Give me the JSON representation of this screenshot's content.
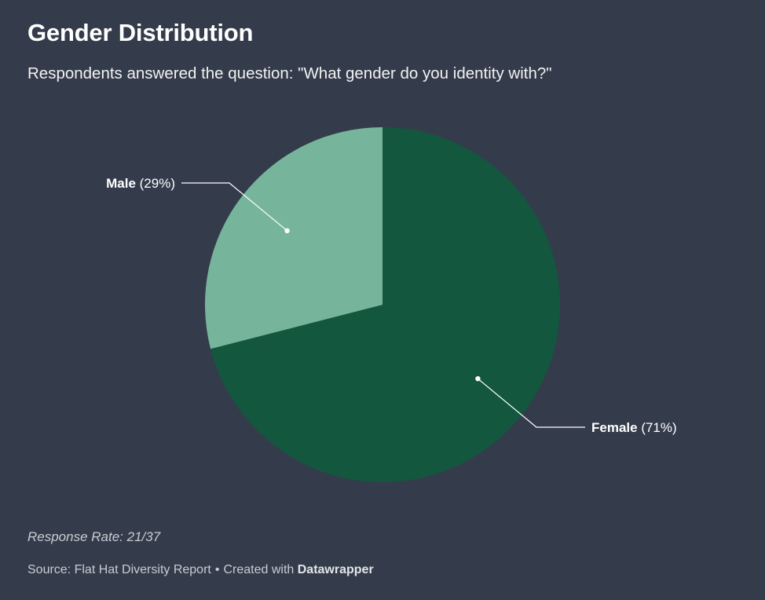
{
  "header": {
    "title": "Gender Distribution",
    "subtitle": "Respondents answered the question: \"What gender do you identity with?\""
  },
  "footer": {
    "note": "Response Rate: 21/37",
    "source": "Source: Flat Hat Diversity Report",
    "separator": "•",
    "created_with": "Created with",
    "tool": "Datawrapper"
  },
  "colors": {
    "background": "#343c4b",
    "female": "#13573f",
    "male": "#76b59c",
    "label": "#ffffff"
  },
  "chart_data": {
    "type": "pie",
    "title": "Gender Distribution",
    "categories": [
      "Female",
      "Male"
    ],
    "values": [
      71,
      29
    ],
    "unit": "%",
    "slices": [
      {
        "label": "Female",
        "value": 71,
        "display": "(71%)",
        "color": "#13573f"
      },
      {
        "label": "Male",
        "value": 29,
        "display": "(29%)",
        "color": "#76b59c"
      }
    ]
  }
}
